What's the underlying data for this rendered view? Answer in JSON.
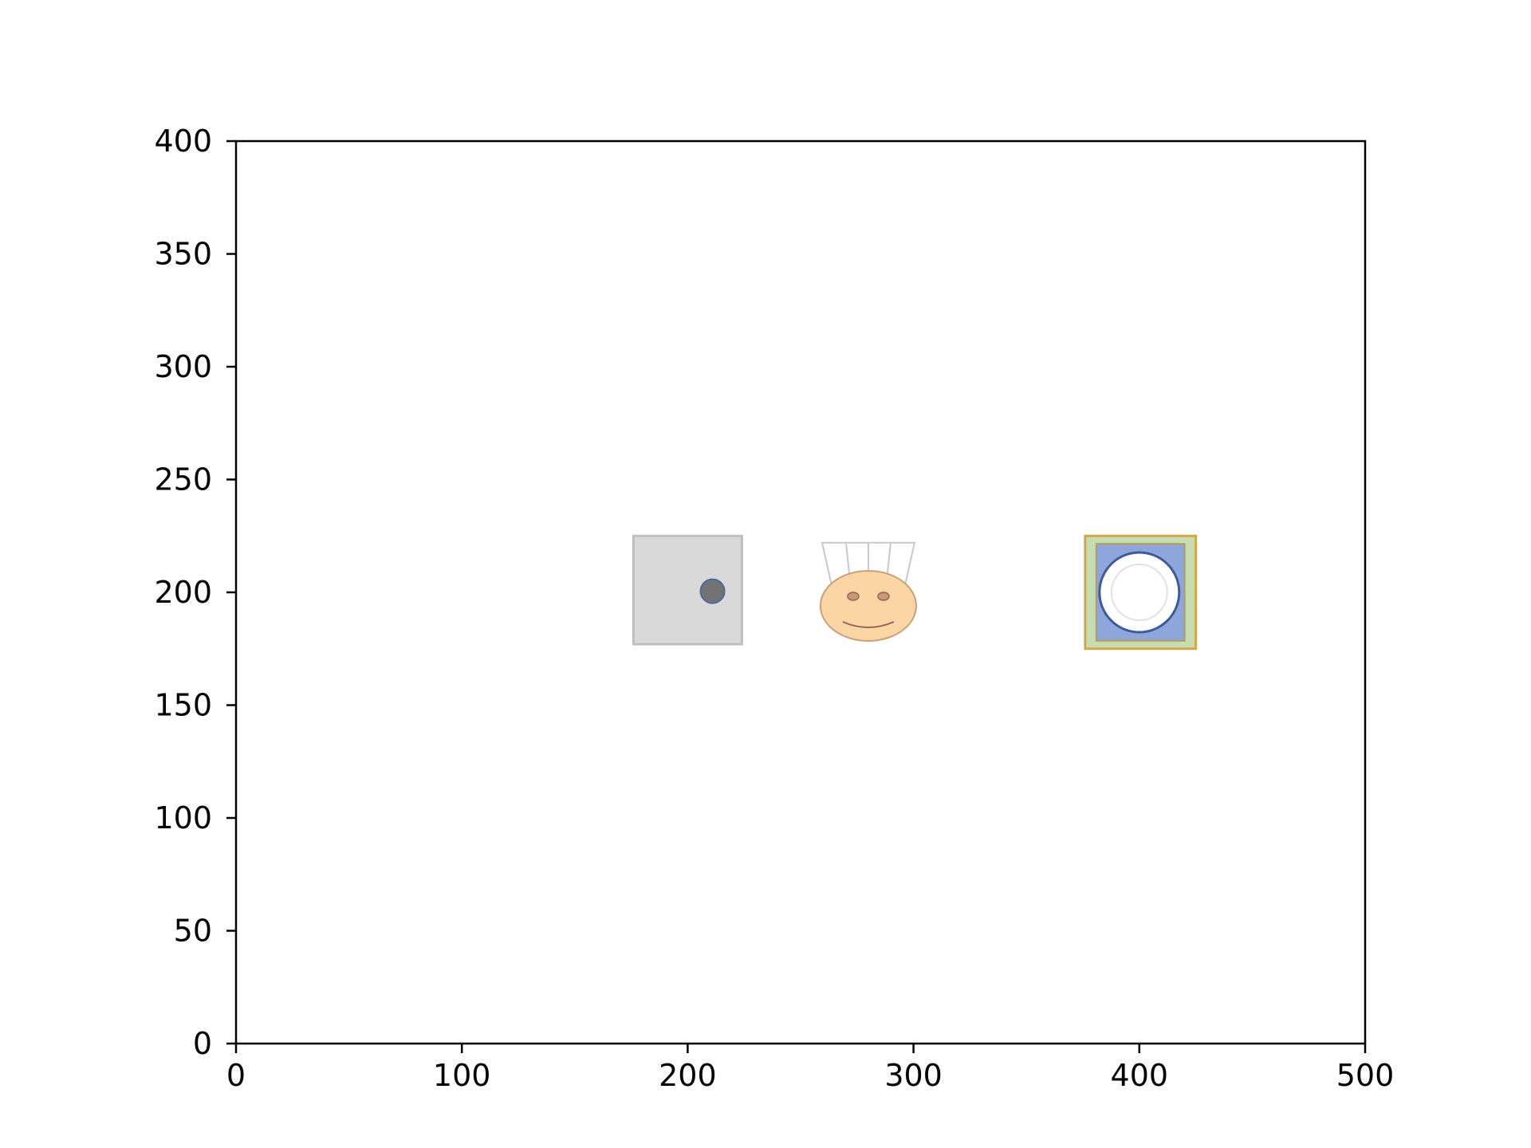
{
  "chart_data": {
    "type": "scatter",
    "title": "",
    "xlabel": "",
    "ylabel": "",
    "xlim": [
      0,
      500
    ],
    "ylim": [
      0,
      400
    ],
    "xticks": [
      "0",
      "100",
      "200",
      "300",
      "400",
      "500"
    ],
    "yticks": [
      "0",
      "50",
      "100",
      "150",
      "200",
      "250",
      "300",
      "350",
      "400"
    ],
    "grid": false,
    "legend": "none",
    "sprites": [
      {
        "name": "stove",
        "x": 200,
        "y": 200
      },
      {
        "name": "chef",
        "x": 280,
        "y": 200
      },
      {
        "name": "plate-station",
        "x": 400,
        "y": 200
      }
    ],
    "colors": {
      "stove_fill": "#d9d9d9",
      "stove_knob": "#737373",
      "chef_face": "#fcd5a5",
      "plate_border": "#c5ddb0",
      "plate_mat": "#8fa6db",
      "plate": "#ffffff"
    }
  }
}
